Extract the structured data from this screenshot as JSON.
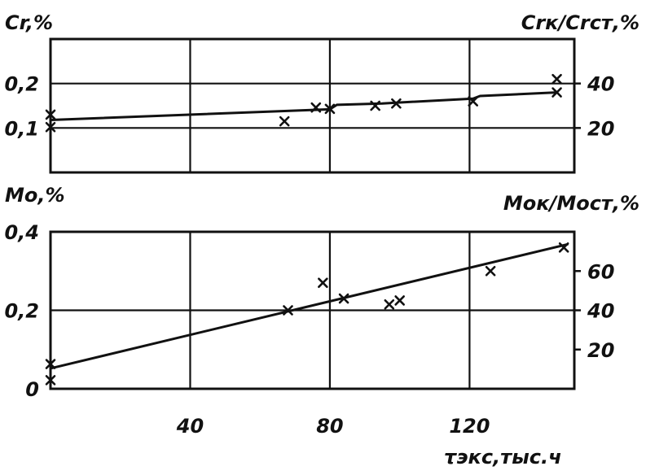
{
  "chart_data": [
    {
      "type": "line",
      "ylabel": "Cr,%",
      "ylabel_right": "Crк/Crст,%",
      "xlim": [
        0,
        150
      ],
      "ylim": [
        0.0,
        0.3
      ],
      "ylim_right": [
        0,
        60
      ],
      "xticks": [
        0,
        40,
        80,
        120
      ],
      "yticks": [
        "0,1",
        "0,2"
      ],
      "yticks_values": [
        0.1,
        0.2
      ],
      "yticks_right": [
        20,
        40
      ],
      "grid": true,
      "series": [
        {
          "kind": "line",
          "x": [
            0,
            80,
            82,
            95,
            99,
            121,
            123,
            145
          ],
          "y": [
            0.118,
            0.142,
            0.152,
            0.155,
            0.157,
            0.166,
            0.172,
            0.18
          ]
        },
        {
          "kind": "markers",
          "x": [
            0,
            0,
            67,
            76,
            80,
            93,
            99,
            121,
            145,
            145
          ],
          "y": [
            0.13,
            0.102,
            0.115,
            0.146,
            0.143,
            0.15,
            0.155,
            0.16,
            0.21,
            0.18
          ]
        }
      ]
    },
    {
      "type": "line",
      "ylabel": "Mo,%",
      "ylabel_right": "Moк/Moст,%",
      "xlabel": "τэкс,тыс.ч",
      "xlim": [
        0,
        150
      ],
      "ylim": [
        0.0,
        0.4
      ],
      "ylim_right": [
        0,
        80
      ],
      "xticks": [
        0,
        40,
        80,
        120
      ],
      "xtick_labels": [
        "40",
        "80",
        "120"
      ],
      "yticks": [
        "0",
        "0,2",
        "0,4"
      ],
      "yticks_values": [
        0.0,
        0.2,
        0.4
      ],
      "yticks_right": [
        20,
        40,
        60
      ],
      "grid": true,
      "series": [
        {
          "kind": "line",
          "x": [
            0,
            148
          ],
          "y": [
            0.052,
            0.368
          ]
        },
        {
          "kind": "markers",
          "x": [
            0,
            0,
            68,
            78,
            84,
            97,
            100,
            126,
            147
          ],
          "y": [
            0.063,
            0.022,
            0.2,
            0.27,
            0.23,
            0.215,
            0.225,
            0.3,
            0.36
          ]
        }
      ]
    }
  ]
}
